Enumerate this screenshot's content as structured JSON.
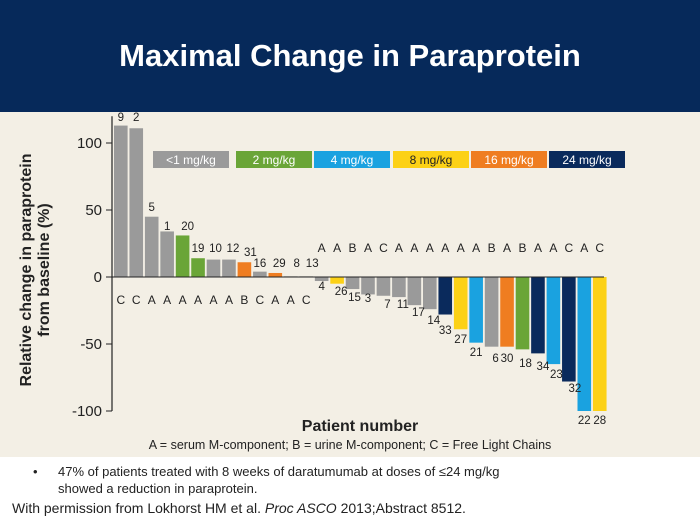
{
  "slide": {
    "title": "Maximal Change in Paraprotein",
    "y_label_line1": "Relative change in paraprotein",
    "y_label_line2": "from baseline (%)",
    "x_label": "Patient number",
    "footnote": "A = serum M-component; B = urine M-component; C = Free Light Chains",
    "bullet_symbol": "•",
    "bullet_text": "47% of patients treated with 8 weeks of daratumumab at doses of ≤24 mg/kg showed a reduction in paraprotein.",
    "permission_prefix": "With permission from Lokhorst HM et al. ",
    "permission_journal": "Proc ASCO",
    "permission_suffix": " 2013;Abstract 8512."
  },
  "chart_data": {
    "type": "bar",
    "ylabel": "Relative change in paraprotein from baseline (%)",
    "xlabel": "Patient number",
    "ylim": [
      -100,
      120
    ],
    "yticks": [
      100,
      50,
      0,
      -50,
      -100
    ],
    "grid": false,
    "legend_placement": "top",
    "legend": [
      {
        "label": "<1 mg/kg",
        "color": "#9a9a9a"
      },
      {
        "label": "2 mg/kg",
        "color": "#6aa537"
      },
      {
        "label": "4 mg/kg",
        "color": "#1aa2e0"
      },
      {
        "label": "8 mg/kg",
        "color": "#fcd116"
      },
      {
        "label": "16 mg/kg",
        "color": "#ef7d21"
      },
      {
        "label": "24 mg/kg",
        "color": "#0a2a5c"
      }
    ],
    "patients": [
      "9",
      "2",
      "5",
      "1",
      "20",
      "19",
      "10",
      "12",
      "31",
      "16",
      "29",
      "8",
      "13",
      "4",
      "26",
      "15",
      "3",
      "7",
      "11",
      "17",
      "14",
      "33",
      "27",
      "21",
      "6",
      "30",
      "18",
      "34",
      "23",
      "32",
      "22",
      "28"
    ],
    "values": [
      113,
      111,
      45,
      34,
      31,
      14,
      13,
      13,
      11,
      4,
      3,
      0.5,
      0.5,
      -3,
      -5,
      -9,
      -13,
      -14,
      -15,
      -21,
      -24,
      -28,
      -39,
      -49,
      -52,
      -52,
      -54,
      -57,
      -65,
      -78,
      -100,
      -100
    ],
    "doses": [
      "<1 mg/kg",
      "<1 mg/kg",
      "<1 mg/kg",
      "<1 mg/kg",
      "2 mg/kg",
      "2 mg/kg",
      "<1 mg/kg",
      "<1 mg/kg",
      "16 mg/kg",
      "<1 mg/kg",
      "16 mg/kg",
      "<1 mg/kg",
      "<1 mg/kg",
      "<1 mg/kg",
      "8 mg/kg",
      "<1 mg/kg",
      "<1 mg/kg",
      "<1 mg/kg",
      "<1 mg/kg",
      "<1 mg/kg",
      "<1 mg/kg",
      "24 mg/kg",
      "8 mg/kg",
      "4 mg/kg",
      "<1 mg/kg",
      "16 mg/kg",
      "2 mg/kg",
      "24 mg/kg",
      "4 mg/kg",
      "24 mg/kg",
      "4 mg/kg",
      "8 mg/kg"
    ],
    "component_labels": [
      "C",
      "C",
      "A",
      "A",
      "A",
      "A",
      "A",
      "A",
      "B",
      "C",
      "A",
      "A",
      "C",
      "A",
      "A",
      "B",
      "A",
      "C",
      "A",
      "A",
      "A",
      "A",
      "A",
      "A",
      "B",
      "A",
      "B",
      "A",
      "A",
      "C",
      "A",
      "C"
    ]
  }
}
